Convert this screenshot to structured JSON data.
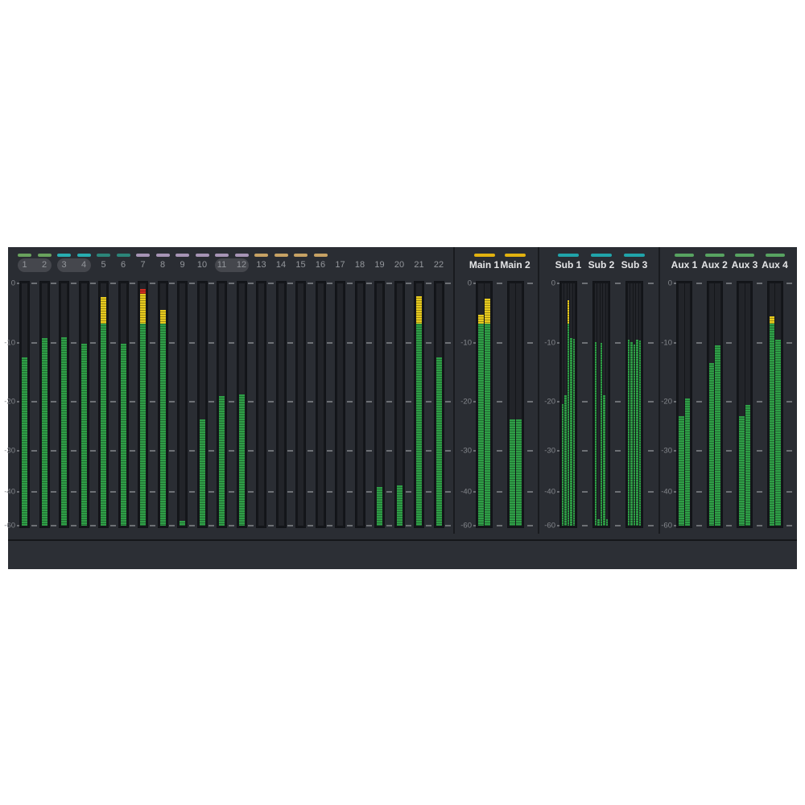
{
  "panel": {
    "name": "audio-meter-bridge",
    "scale": {
      "tick_labels": [
        "0",
        "-10",
        "-20",
        "-30",
        "-40",
        "-60"
      ],
      "tick_dbs": [
        0,
        -10,
        -20,
        -30,
        -40,
        -60
      ],
      "anchors": [
        [
          0,
          0
        ],
        [
          10,
          0.246
        ],
        [
          20,
          0.488
        ],
        [
          30,
          0.69
        ],
        [
          40,
          0.859
        ],
        [
          60,
          1.0
        ]
      ]
    },
    "thresholds": {
      "yellow_db": -6.8,
      "red_db": -1.8
    },
    "colors": {
      "panel_bg": "#2a2d33",
      "bottom_strip": "#2c2f35",
      "divider": "#191b1f",
      "meter_green": "#2f9e47",
      "meter_yellow": "#e7ca1e",
      "meter_red": "#cf2d20",
      "well_bg": "#222429",
      "tick_dash": "#6d7075",
      "scale_text": "#84878c",
      "channel_number_text": "#94979c",
      "bus_label_text": "#e4e5e7",
      "group_pill_bg": "#45474d",
      "strip_green": "#69a25d",
      "strip_teal_bright": "#27adb1",
      "strip_teal_dark": "#2b8579",
      "strip_lavender": "#a794b6",
      "strip_tan": "#c7a264",
      "strip_yellow": "#e2b20f",
      "strip_sub_teal": "#20a4aa",
      "strip_aux_green": "#57a361"
    },
    "sections": [
      {
        "id": "channels",
        "label_style": "channel",
        "linked_pairs": [
          [
            0,
            1
          ],
          [
            2,
            3
          ],
          [
            10,
            11
          ]
        ],
        "meters": [
          {
            "label": "1",
            "strip": "#69a25d",
            "levels_db": [
              -12.4
            ]
          },
          {
            "label": "2",
            "strip": "#69a25d",
            "levels_db": [
              -9.2
            ]
          },
          {
            "label": "3",
            "strip": "#27adb1",
            "levels_db": [
              -9.0
            ]
          },
          {
            "label": "4",
            "strip": "#27adb1",
            "levels_db": [
              -10.1
            ]
          },
          {
            "label": "5",
            "strip": "#2b8579",
            "levels_db": [
              -2.3
            ]
          },
          {
            "label": "6",
            "strip": "#2b8579",
            "levels_db": [
              -10.1
            ]
          },
          {
            "label": "7",
            "strip": "#a794b6",
            "levels_db": [
              -1.0
            ]
          },
          {
            "label": "8",
            "strip": "#a794b6",
            "levels_db": [
              -4.5
            ]
          },
          {
            "label": "9",
            "strip": "#a794b6",
            "levels_db": [
              -57
            ]
          },
          {
            "label": "10",
            "strip": "#a794b6",
            "levels_db": [
              -23.7
            ]
          },
          {
            "label": "11",
            "strip": "#a794b6",
            "levels_db": [
              -19.0
            ]
          },
          {
            "label": "12",
            "strip": "#a794b6",
            "levels_db": [
              -18.8
            ]
          },
          {
            "label": "13",
            "strip": "#c7a264",
            "levels_db": [
              null
            ]
          },
          {
            "label": "14",
            "strip": "#c7a264",
            "levels_db": [
              null
            ]
          },
          {
            "label": "15",
            "strip": "#c7a264",
            "levels_db": [
              null
            ]
          },
          {
            "label": "16",
            "strip": "#c7a264",
            "levels_db": [
              null
            ]
          },
          {
            "label": "17",
            "strip": null,
            "levels_db": [
              null
            ]
          },
          {
            "label": "18",
            "strip": null,
            "levels_db": [
              null
            ]
          },
          {
            "label": "19",
            "strip": null,
            "levels_db": [
              -39
            ]
          },
          {
            "label": "20",
            "strip": null,
            "levels_db": [
              -38.5
            ]
          },
          {
            "label": "21",
            "strip": null,
            "levels_db": [
              -2.1
            ]
          },
          {
            "label": "22",
            "strip": null,
            "levels_db": [
              -12.4
            ]
          }
        ]
      },
      {
        "id": "mains",
        "label_style": "bus",
        "linked_pairs": [],
        "meters": [
          {
            "label": "Main 1",
            "strip": "#e2b20f",
            "levels_db": [
              -5.3,
              -2.5
            ]
          },
          {
            "label": "Main 2",
            "strip": "#e2b20f",
            "levels_db": [
              -23.7,
              -23.7
            ]
          }
        ]
      },
      {
        "id": "subs",
        "label_style": "bus",
        "linked_pairs": [],
        "meters": [
          {
            "label": "Sub 1",
            "strip": "#20a4aa",
            "levels_db": [
              -20.5,
              -18.9,
              -2.9,
              -9.2,
              -9.3
            ]
          },
          {
            "label": "Sub 2",
            "strip": "#20a4aa",
            "levels_db": [
              -9.9,
              -56,
              -10.0,
              -18.9,
              -56
            ]
          },
          {
            "label": "Sub 3",
            "strip": "#20a4aa",
            "levels_db": [
              -9.5,
              -9.9,
              -10.3,
              -9.4,
              -9.6
            ]
          }
        ]
      },
      {
        "id": "auxes",
        "label_style": "bus",
        "linked_pairs": [],
        "meters": [
          {
            "label": "Aux 1",
            "strip": "#57a361",
            "levels_db": [
              -23.0,
              -19.4
            ]
          },
          {
            "label": "Aux 2",
            "strip": "#57a361",
            "levels_db": [
              -13.4,
              -10.4
            ]
          },
          {
            "label": "Aux 3",
            "strip": "#57a361",
            "levels_db": [
              -23.0,
              -20.7
            ]
          },
          {
            "label": "Aux 4",
            "strip": "#57a361",
            "levels_db": [
              -5.6,
              -9.5
            ]
          }
        ]
      }
    ]
  }
}
